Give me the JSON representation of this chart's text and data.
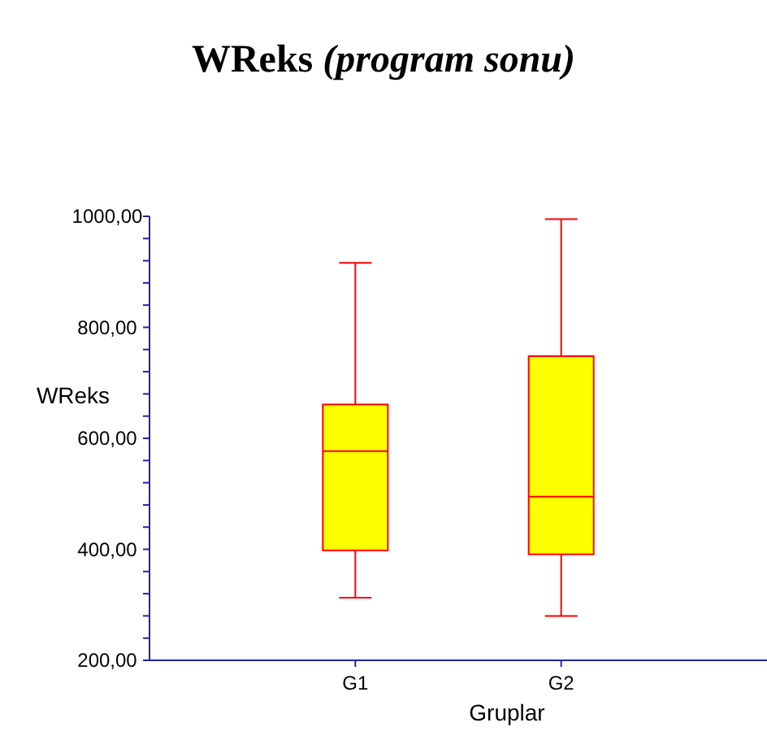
{
  "chart_data": {
    "type": "box",
    "title": "WReks",
    "subtitle": "(program sonu)",
    "xlabel": "Gruplar",
    "ylabel": "WReks",
    "categories": [
      "G1",
      "G2"
    ],
    "series": [
      {
        "color": "#ffff00",
        "boxes": [
          {
            "low": 313,
            "q1": 398,
            "median": 577,
            "q3": 661,
            "high": 916
          },
          {
            "low": 280,
            "q1": 391,
            "median": 495,
            "q3": 748,
            "high": 995
          }
        ]
      }
    ],
    "ylim": [
      200,
      1000
    ],
    "yticks": [
      {
        "value": 200,
        "label": "200,00"
      },
      {
        "value": 240,
        "label": null
      },
      {
        "value": 280,
        "label": null
      },
      {
        "value": 320,
        "label": null
      },
      {
        "value": 360,
        "label": null
      },
      {
        "value": 400,
        "label": "400,00"
      },
      {
        "value": 440,
        "label": null
      },
      {
        "value": 480,
        "label": null
      },
      {
        "value": 520,
        "label": null
      },
      {
        "value": 560,
        "label": null
      },
      {
        "value": 600,
        "label": "600,00"
      },
      {
        "value": 640,
        "label": null
      },
      {
        "value": 680,
        "label": null
      },
      {
        "value": 720,
        "label": null
      },
      {
        "value": 760,
        "label": null
      },
      {
        "value": 800,
        "label": "800,00"
      },
      {
        "value": 840,
        "label": null
      },
      {
        "value": 880,
        "label": null
      },
      {
        "value": 920,
        "label": null
      },
      {
        "value": 960,
        "label": null
      },
      {
        "value": 1000,
        "label": "1000,00"
      }
    ],
    "grid": false
  }
}
